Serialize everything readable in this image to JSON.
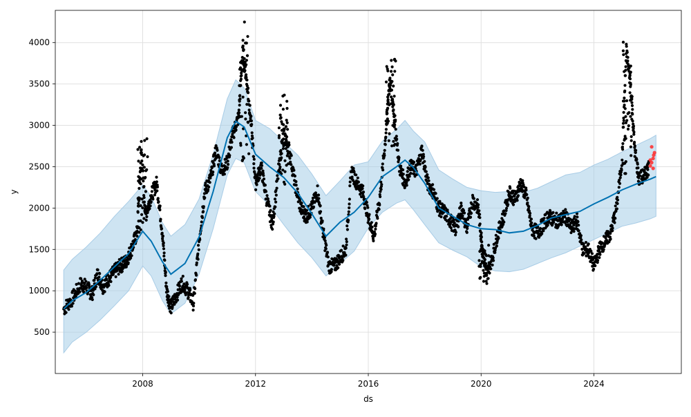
{
  "chart_data": {
    "type": "line",
    "title": "",
    "xlabel": "ds",
    "ylabel": "y",
    "xlim": [
      2004.9,
      2027.1
    ],
    "ylim": [
      0,
      4390
    ],
    "grid": true,
    "x_ticks": [
      2008,
      2012,
      2016,
      2020,
      2024
    ],
    "x_tick_labels": [
      "2008",
      "2012",
      "2016",
      "2020",
      "2024"
    ],
    "y_ticks": [
      500,
      1000,
      1500,
      2000,
      2500,
      3000,
      3500,
      4000
    ],
    "y_tick_labels": [
      "500",
      "1000",
      "1500",
      "2000",
      "2500",
      "3000",
      "3500",
      "4000"
    ],
    "colors": {
      "trend": "#0072B2",
      "band_fill": "#A6CDE8",
      "band_edge": "#A8CCE6",
      "actual": "#000000",
      "holdout": "#FF2A2A",
      "grid": "#E0E0E0"
    },
    "forecast": {
      "x": [
        2005.2,
        2005.5,
        2006.0,
        2006.5,
        2007.0,
        2007.5,
        2008.0,
        2008.3,
        2008.7,
        2009.0,
        2009.5,
        2010.0,
        2010.5,
        2011.0,
        2011.3,
        2011.6,
        2012.0,
        2012.5,
        2013.0,
        2013.5,
        2014.0,
        2014.5,
        2015.0,
        2015.5,
        2016.0,
        2016.5,
        2017.0,
        2017.3,
        2017.6,
        2018.0,
        2018.5,
        2019.0,
        2019.5,
        2020.0,
        2020.5,
        2021.0,
        2021.5,
        2022.0,
        2022.5,
        2023.0,
        2023.5,
        2024.0,
        2024.5,
        2025.0,
        2025.5,
        2026.0,
        2026.2
      ],
      "yhat": [
        780,
        880,
        980,
        1130,
        1290,
        1450,
        1720,
        1600,
        1350,
        1200,
        1330,
        1650,
        2200,
        2850,
        3050,
        2980,
        2650,
        2500,
        2370,
        2180,
        1930,
        1660,
        1830,
        1950,
        2130,
        2380,
        2500,
        2580,
        2490,
        2300,
        2000,
        1900,
        1800,
        1750,
        1740,
        1700,
        1720,
        1790,
        1880,
        1920,
        1960,
        2050,
        2130,
        2220,
        2290,
        2350,
        2380
      ],
      "lower": [
        250,
        380,
        500,
        650,
        820,
        1000,
        1300,
        1180,
        880,
        720,
        850,
        1200,
        1750,
        2400,
        2600,
        2550,
        2200,
        2030,
        1800,
        1580,
        1400,
        1180,
        1330,
        1480,
        1760,
        1950,
        2060,
        2100,
        1980,
        1800,
        1580,
        1490,
        1410,
        1290,
        1240,
        1230,
        1260,
        1330,
        1400,
        1460,
        1540,
        1620,
        1700,
        1780,
        1820,
        1870,
        1900
      ],
      "upper": [
        1250,
        1380,
        1530,
        1700,
        1900,
        2080,
        2280,
        2140,
        1820,
        1660,
        1800,
        2110,
        2650,
        3320,
        3550,
        3450,
        3060,
        2960,
        2800,
        2640,
        2410,
        2150,
        2330,
        2520,
        2560,
        2810,
        2950,
        3060,
        2930,
        2800,
        2460,
        2350,
        2250,
        2210,
        2190,
        2200,
        2190,
        2240,
        2320,
        2400,
        2430,
        2520,
        2590,
        2680,
        2760,
        2840,
        2880
      ]
    },
    "observed": {
      "x": [
        2005.2,
        2005.5,
        2005.8,
        2006.0,
        2006.2,
        2006.4,
        2006.6,
        2006.8,
        2007.0,
        2007.2,
        2007.4,
        2007.6,
        2007.8,
        2007.95,
        2008.1,
        2008.3,
        2008.5,
        2008.7,
        2008.85,
        2009.0,
        2009.2,
        2009.4,
        2009.6,
        2009.8,
        2010.0,
        2010.2,
        2010.4,
        2010.6,
        2010.8,
        2011.0,
        2011.2,
        2011.4,
        2011.55,
        2011.7,
        2011.85,
        2012.0,
        2012.2,
        2012.4,
        2012.6,
        2012.8,
        2013.0,
        2013.2,
        2013.4,
        2013.6,
        2013.8,
        2014.0,
        2014.2,
        2014.4,
        2014.6,
        2014.8,
        2015.0,
        2015.2,
        2015.4,
        2015.6,
        2015.8,
        2016.0,
        2016.2,
        2016.4,
        2016.6,
        2016.75,
        2016.9,
        2017.1,
        2017.3,
        2017.5,
        2017.7,
        2017.9,
        2018.1,
        2018.3,
        2018.5,
        2018.7,
        2018.9,
        2019.1,
        2019.3,
        2019.5,
        2019.7,
        2019.9,
        2020.05,
        2020.2,
        2020.4,
        2020.6,
        2020.8,
        2021.0,
        2021.2,
        2021.4,
        2021.6,
        2021.8,
        2022.0,
        2022.2,
        2022.4,
        2022.6,
        2022.8,
        2023.0,
        2023.2,
        2023.4,
        2023.6,
        2023.8,
        2024.0,
        2024.2,
        2024.4,
        2024.6,
        2024.8,
        2025.0,
        2025.15,
        2025.3,
        2025.45,
        2025.6,
        2025.8,
        2025.95
      ],
      "y": [
        780,
        900,
        1080,
        1050,
        960,
        1200,
        1050,
        1150,
        1230,
        1300,
        1350,
        1500,
        1700,
        2700,
        1900,
        2150,
        2300,
        1700,
        1000,
        800,
        950,
        1100,
        1000,
        850,
        1600,
        2200,
        2350,
        2700,
        2450,
        2550,
        2900,
        3100,
        3900,
        3500,
        3000,
        2300,
        2500,
        2100,
        1800,
        2400,
        2900,
        2700,
        2300,
        2000,
        1900,
        2000,
        2200,
        1700,
        1300,
        1300,
        1400,
        1500,
        2450,
        2300,
        2200,
        1900,
        1650,
        2100,
        2800,
        3550,
        3200,
        2500,
        2300,
        2500,
        2450,
        2700,
        2300,
        2200,
        2000,
        1950,
        1850,
        1750,
        2000,
        1750,
        2100,
        2000,
        1500,
        1200,
        1400,
        1700,
        1900,
        2200,
        2100,
        2300,
        2150,
        1750,
        1700,
        1800,
        1900,
        1850,
        1850,
        1900,
        1750,
        1850,
        1500,
        1500,
        1300,
        1500,
        1600,
        1700,
        2000,
        2600,
        3900,
        3500,
        2700,
        2350,
        2400,
        2500
      ],
      "bands": [
        {
          "x": 2008.0,
          "low": 1700,
          "high": 2870
        },
        {
          "x": 2011.6,
          "low": 2500,
          "high": 4250
        },
        {
          "x": 2013.0,
          "low": 2200,
          "high": 3400
        },
        {
          "x": 2016.8,
          "low": 2700,
          "high": 3820
        },
        {
          "x": 2020.1,
          "low": 1060,
          "high": 1600
        },
        {
          "x": 2025.2,
          "low": 2300,
          "high": 4030
        }
      ]
    },
    "holdout": {
      "x": [
        2026.0,
        2026.05,
        2026.1,
        2026.15,
        2026.05,
        2026.1,
        2026.0,
        2026.12
      ],
      "y": [
        2510,
        2550,
        2600,
        2670,
        2740,
        2480,
        2580,
        2640
      ]
    }
  }
}
